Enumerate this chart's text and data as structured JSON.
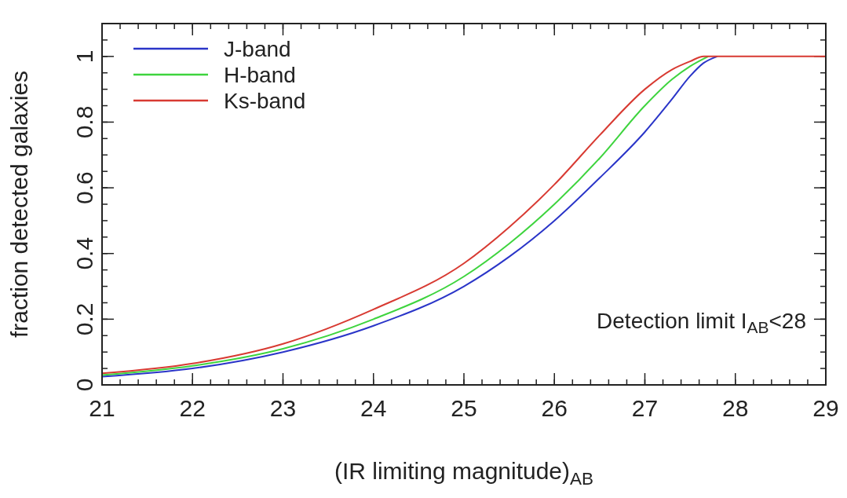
{
  "chart_data": {
    "type": "line",
    "xlabel": "(IR limiting magnitude)$_{AB}$",
    "ylabel": "fraction detected galaxies",
    "xlim": [
      21,
      29
    ],
    "ylim": [
      0,
      1.1
    ],
    "xticks": [
      21,
      22,
      23,
      24,
      25,
      26,
      27,
      28,
      29
    ],
    "yticks": [
      0,
      0.2,
      0.4,
      0.6,
      0.8,
      1
    ],
    "x": [
      21,
      22,
      23,
      24,
      25,
      25.5,
      26,
      26.5,
      27,
      27.3,
      27.5,
      27.65,
      27.8,
      28,
      29
    ],
    "series": [
      {
        "name": "J-band",
        "color": "#2a35c8",
        "x": [
          21,
          22,
          23,
          24,
          25,
          25.5,
          26,
          26.5,
          27,
          27.3,
          27.5,
          27.65,
          27.8
        ],
        "values": [
          0.025,
          0.05,
          0.1,
          0.18,
          0.3,
          0.39,
          0.5,
          0.63,
          0.77,
          0.87,
          0.94,
          0.98,
          1
        ]
      },
      {
        "name": "H-band",
        "color": "#3ed43e",
        "x": [
          21,
          22,
          23,
          24,
          25,
          25.5,
          26,
          26.5,
          27,
          27.3,
          27.5,
          27.7
        ],
        "values": [
          0.03,
          0.058,
          0.11,
          0.2,
          0.33,
          0.43,
          0.55,
          0.69,
          0.85,
          0.93,
          0.97,
          1
        ]
      },
      {
        "name": "Ks-band",
        "color": "#d83a32",
        "values": [
          0.035,
          0.065,
          0.125,
          0.23,
          0.37,
          0.48,
          0.61,
          0.76,
          0.9,
          0.96,
          0.985,
          1,
          1,
          1,
          1
        ]
      }
    ],
    "annotations": [
      "Detection limit I$_{AB}$<28"
    ],
    "legend": "top left",
    "marker": "none",
    "line_style": "solid",
    "grid": false
  }
}
